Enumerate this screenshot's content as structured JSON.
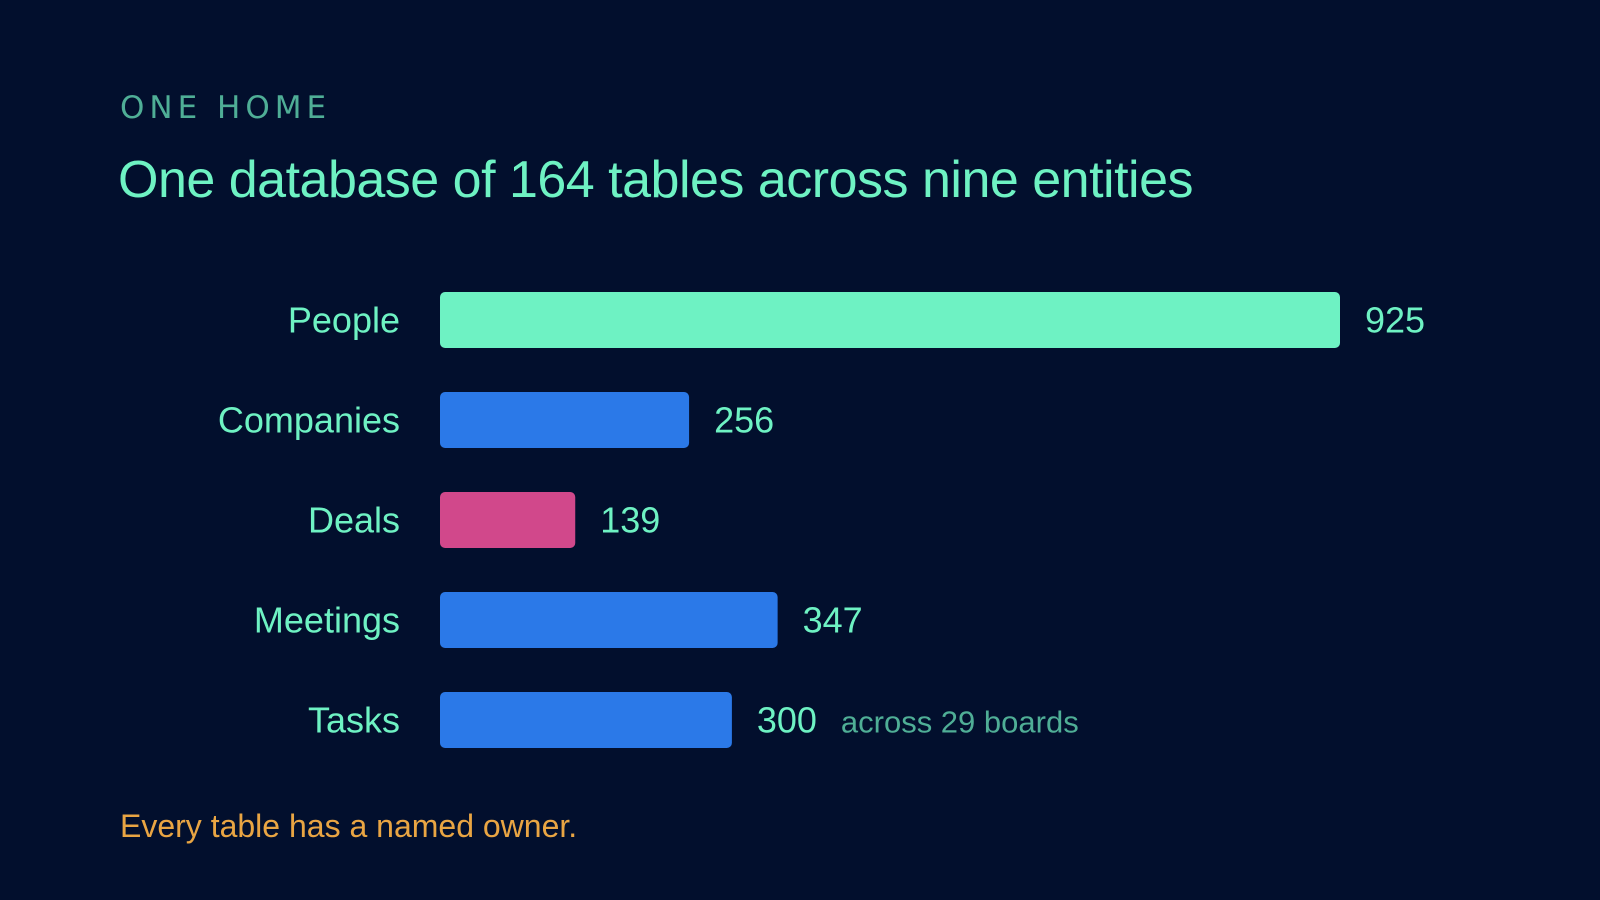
{
  "eyebrow": "ONE HOME",
  "title": "One database of 164 tables across nine entities",
  "footer": "Every table has a named owner.",
  "colors": {
    "background": "#020f2d",
    "people": "#6ef2c3",
    "default_bar": "#2b79e8",
    "deals": "#d1488b",
    "label": "#6ef2c3",
    "value": "#6ef2c3",
    "note": "#4fae96",
    "footer": "#e9a543"
  },
  "chart_data": {
    "type": "bar",
    "orientation": "horizontal",
    "categories": [
      "People",
      "Companies",
      "Deals",
      "Meetings",
      "Tasks"
    ],
    "values": [
      925,
      256,
      139,
      347,
      300
    ],
    "bar_colors": [
      "#6ef2c3",
      "#2b79e8",
      "#d1488b",
      "#2b79e8",
      "#2b79e8"
    ],
    "value_labels": [
      "925",
      "256",
      "139",
      "347",
      "300"
    ],
    "annotations": [
      "",
      "",
      "",
      "",
      "across 29 boards"
    ],
    "xlim": [
      0,
      925
    ],
    "grid": false
  }
}
